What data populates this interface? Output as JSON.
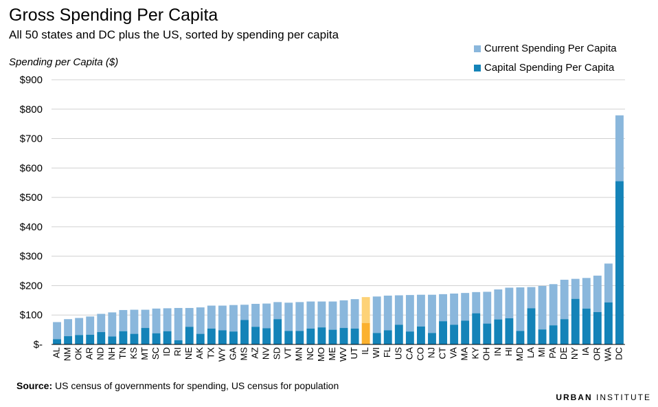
{
  "header": {
    "title": "Gross Spending Per Capita",
    "subtitle": "All 50 states and DC plus the US, sorted by spending per capita"
  },
  "footer": {
    "source_label": "Source:",
    "source_text": "US census of governments for spending, US census for population",
    "logo_part1": "URBAN",
    "logo_part2": "INSTITUTE"
  },
  "colors": {
    "current": "#8ab7dc",
    "capital": "#1483b8",
    "highlight_current": "#fdd277",
    "highlight_capital": "#fbb12f",
    "grid": "#d0d0d0"
  },
  "chart_data": {
    "type": "stacked-bar",
    "title": "Gross Spending Per Capita",
    "subtitle": "All 50 states and DC plus the US, sorted by spending per capita",
    "ylabel": "Spending per Capita ($)",
    "xlabel": "",
    "ylim": [
      0,
      900
    ],
    "yticks": [
      0,
      100,
      200,
      300,
      400,
      500,
      600,
      700,
      800,
      900
    ],
    "ytick_labels": [
      "$-",
      "$100",
      "$200",
      "$300",
      "$400",
      "$500",
      "$600",
      "$700",
      "$800",
      "$900"
    ],
    "grid": true,
    "legend_position": "top-right",
    "highlight": "IL",
    "categories": [
      "AL",
      "NM",
      "OK",
      "AR",
      "ND",
      "NH",
      "TN",
      "KS",
      "MT",
      "SC",
      "ID",
      "RI",
      "NE",
      "AK",
      "TX",
      "WY",
      "GA",
      "MS",
      "AZ",
      "NV",
      "SD",
      "VT",
      "MN",
      "NC",
      "MO",
      "ME",
      "WV",
      "UT",
      "IL",
      "WI",
      "FL",
      "US",
      "CA",
      "CO",
      "NJ",
      "CT",
      "VA",
      "MA",
      "KY",
      "OH",
      "IN",
      "HI",
      "MD",
      "LA",
      "MI",
      "PA",
      "DE",
      "NY",
      "IA",
      "OR",
      "WA",
      "DC"
    ],
    "series": [
      {
        "name": "Current Spending Per Capita",
        "values": [
          58,
          58,
          58,
          62,
          62,
          82,
          72,
          82,
          62,
          84,
          78,
          110,
          64,
          90,
          78,
          84,
          90,
          52,
          78,
          84,
          58,
          96,
          98,
          92,
          88,
          96,
          94,
          100,
          88,
          124,
          118,
          100,
          124,
          108,
          130,
          92,
          106,
          94,
          72,
          108,
          102,
          104,
          148,
          72,
          148,
          140,
          134,
          68,
          104,
          124,
          132,
          224
        ]
      },
      {
        "name": "Capital Spending Per Capita",
        "values": [
          18,
          28,
          32,
          33,
          42,
          27,
          45,
          36,
          56,
          38,
          45,
          14,
          60,
          36,
          54,
          48,
          44,
          83,
          60,
          55,
          86,
          46,
          46,
          54,
          58,
          50,
          56,
          54,
          73,
          39,
          48,
          67,
          44,
          61,
          39,
          79,
          67,
          81,
          106,
          71,
          85,
          89,
          46,
          123,
          51,
          65,
          86,
          155,
          122,
          110,
          143,
          555
        ]
      }
    ]
  }
}
